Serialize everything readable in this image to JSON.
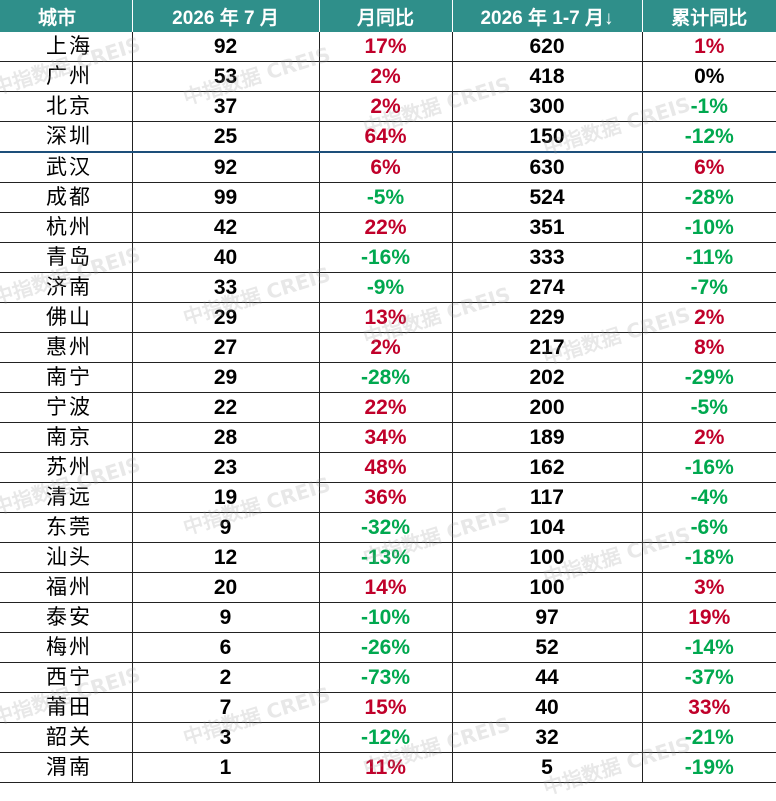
{
  "header": {
    "city": "城市",
    "month": "2026 年 7 月",
    "mom": "月同比",
    "ytd": "2026 年 1-7 月",
    "ytd_sort_icon": "↓",
    "ytd_yoy": "累计同比"
  },
  "rows": [
    {
      "city": "上海",
      "month": "92",
      "mom": "17%",
      "mom_dir": "up",
      "ytd": "620",
      "ytd_yoy": "1%",
      "ytd_dir": "up"
    },
    {
      "city": "广州",
      "month": "53",
      "mom": "2%",
      "mom_dir": "up",
      "ytd": "418",
      "ytd_yoy": "0%",
      "ytd_dir": "flat"
    },
    {
      "city": "北京",
      "month": "37",
      "mom": "2%",
      "mom_dir": "up",
      "ytd": "300",
      "ytd_yoy": "-1%",
      "ytd_dir": "down"
    },
    {
      "city": "深圳",
      "month": "25",
      "mom": "64%",
      "mom_dir": "up",
      "ytd": "150",
      "ytd_yoy": "-12%",
      "ytd_dir": "down"
    },
    {
      "city": "武汉",
      "month": "92",
      "mom": "6%",
      "mom_dir": "up",
      "ytd": "630",
      "ytd_yoy": "6%",
      "ytd_dir": "up"
    },
    {
      "city": "成都",
      "month": "99",
      "mom": "-5%",
      "mom_dir": "down",
      "ytd": "524",
      "ytd_yoy": "-28%",
      "ytd_dir": "down"
    },
    {
      "city": "杭州",
      "month": "42",
      "mom": "22%",
      "mom_dir": "up",
      "ytd": "351",
      "ytd_yoy": "-10%",
      "ytd_dir": "down"
    },
    {
      "city": "青岛",
      "month": "40",
      "mom": "-16%",
      "mom_dir": "down",
      "ytd": "333",
      "ytd_yoy": "-11%",
      "ytd_dir": "down"
    },
    {
      "city": "济南",
      "month": "33",
      "mom": "-9%",
      "mom_dir": "down",
      "ytd": "274",
      "ytd_yoy": "-7%",
      "ytd_dir": "down"
    },
    {
      "city": "佛山",
      "month": "29",
      "mom": "13%",
      "mom_dir": "up",
      "ytd": "229",
      "ytd_yoy": "2%",
      "ytd_dir": "up"
    },
    {
      "city": "惠州",
      "month": "27",
      "mom": "2%",
      "mom_dir": "up",
      "ytd": "217",
      "ytd_yoy": "8%",
      "ytd_dir": "up"
    },
    {
      "city": "南宁",
      "month": "29",
      "mom": "-28%",
      "mom_dir": "down",
      "ytd": "202",
      "ytd_yoy": "-29%",
      "ytd_dir": "down"
    },
    {
      "city": "宁波",
      "month": "22",
      "mom": "22%",
      "mom_dir": "up",
      "ytd": "200",
      "ytd_yoy": "-5%",
      "ytd_dir": "down"
    },
    {
      "city": "南京",
      "month": "28",
      "mom": "34%",
      "mom_dir": "up",
      "ytd": "189",
      "ytd_yoy": "2%",
      "ytd_dir": "up"
    },
    {
      "city": "苏州",
      "month": "23",
      "mom": "48%",
      "mom_dir": "up",
      "ytd": "162",
      "ytd_yoy": "-16%",
      "ytd_dir": "down"
    },
    {
      "city": "清远",
      "month": "19",
      "mom": "36%",
      "mom_dir": "up",
      "ytd": "117",
      "ytd_yoy": "-4%",
      "ytd_dir": "down"
    },
    {
      "city": "东莞",
      "month": "9",
      "mom": "-32%",
      "mom_dir": "down",
      "ytd": "104",
      "ytd_yoy": "-6%",
      "ytd_dir": "down"
    },
    {
      "city": "汕头",
      "month": "12",
      "mom": "-13%",
      "mom_dir": "down",
      "ytd": "100",
      "ytd_yoy": "-18%",
      "ytd_dir": "down"
    },
    {
      "city": "福州",
      "month": "20",
      "mom": "14%",
      "mom_dir": "up",
      "ytd": "100",
      "ytd_yoy": "3%",
      "ytd_dir": "up"
    },
    {
      "city": "泰安",
      "month": "9",
      "mom": "-10%",
      "mom_dir": "down",
      "ytd": "97",
      "ytd_yoy": "19%",
      "ytd_dir": "up"
    },
    {
      "city": "梅州",
      "month": "6",
      "mom": "-26%",
      "mom_dir": "down",
      "ytd": "52",
      "ytd_yoy": "-14%",
      "ytd_dir": "down"
    },
    {
      "city": "西宁",
      "month": "2",
      "mom": "-73%",
      "mom_dir": "down",
      "ytd": "44",
      "ytd_yoy": "-37%",
      "ytd_dir": "down"
    },
    {
      "city": "莆田",
      "month": "7",
      "mom": "15%",
      "mom_dir": "up",
      "ytd": "40",
      "ytd_yoy": "33%",
      "ytd_dir": "up"
    },
    {
      "city": "韶关",
      "month": "3",
      "mom": "-12%",
      "mom_dir": "down",
      "ytd": "32",
      "ytd_yoy": "-21%",
      "ytd_dir": "down"
    },
    {
      "city": "渭南",
      "month": "1",
      "mom": "11%",
      "mom_dir": "up",
      "ytd": "5",
      "ytd_yoy": "-19%",
      "ytd_dir": "down"
    }
  ],
  "watermark": "中指数据 CREIS",
  "colors": {
    "header_bg": "#2f8f8a",
    "positive": "#c0002a",
    "negative": "#00a84f",
    "group_divider": "#1d4f7a"
  }
}
